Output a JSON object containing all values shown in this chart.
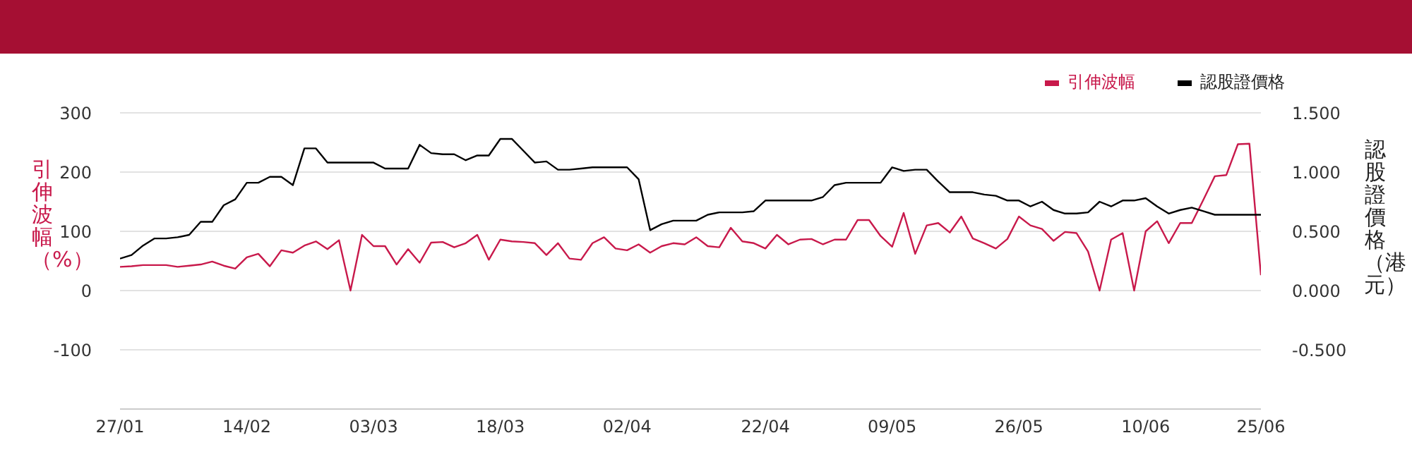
{
  "chart_data": {
    "type": "line",
    "ylabel": "引伸波幅（%）",
    "y2label": "認股證價格（港元）",
    "categories": [
      "27/01",
      null,
      null,
      null,
      null,
      null,
      null,
      null,
      null,
      null,
      null,
      "14/02",
      null,
      null,
      null,
      null,
      null,
      null,
      null,
      null,
      null,
      null,
      "03/03",
      null,
      null,
      null,
      null,
      null,
      null,
      null,
      null,
      null,
      null,
      "18/03",
      null,
      null,
      null,
      null,
      null,
      null,
      null,
      null,
      null,
      null,
      "02/04",
      null,
      null,
      null,
      null,
      null,
      null,
      null,
      null,
      null,
      null,
      null,
      "22/04",
      null,
      null,
      null,
      null,
      null,
      null,
      null,
      null,
      null,
      null,
      "09/05",
      null,
      null,
      null,
      null,
      null,
      null,
      null,
      null,
      null,
      null,
      "26/05",
      null,
      null,
      null,
      null,
      null,
      null,
      null,
      null,
      null,
      null,
      "10/06",
      null,
      null,
      null,
      null,
      null,
      null,
      null,
      null,
      null,
      "25/06"
    ],
    "series": [
      {
        "name": "引伸波幅",
        "color": "#c8194b",
        "values": [
          40,
          41,
          43,
          43,
          43,
          40,
          42,
          44,
          49,
          42,
          37,
          56,
          62,
          41,
          68,
          64,
          76,
          83,
          70,
          85,
          0,
          94,
          75,
          75,
          44,
          70,
          47,
          81,
          82,
          73,
          80,
          94,
          52,
          86,
          83,
          82,
          80,
          60,
          80,
          54,
          52,
          80,
          90,
          71,
          68,
          78,
          64,
          75,
          80,
          78,
          90,
          75,
          73,
          106,
          83,
          80,
          71,
          94,
          78,
          86,
          87,
          78,
          86,
          86,
          119,
          119,
          92,
          74,
          131,
          62,
          110,
          114,
          98,
          125,
          88,
          80,
          71,
          87,
          125,
          110,
          104,
          84,
          99,
          97,
          66,
          0,
          86,
          97,
          0,
          100,
          117,
          80,
          114,
          114,
          153,
          193,
          195,
          247,
          248,
          26
        ]
      },
      {
        "name": "認股證價格",
        "color": "#000000",
        "axis": "y2",
        "values": [
          0.27,
          0.3,
          0.38,
          0.44,
          0.44,
          0.45,
          0.47,
          0.58,
          0.58,
          0.72,
          0.77,
          0.91,
          0.91,
          0.96,
          0.96,
          0.89,
          1.2,
          1.2,
          1.08,
          1.08,
          1.08,
          1.08,
          1.08,
          1.03,
          1.03,
          1.03,
          1.23,
          1.16,
          1.15,
          1.15,
          1.1,
          1.14,
          1.14,
          1.28,
          1.28,
          1.18,
          1.08,
          1.09,
          1.02,
          1.02,
          1.03,
          1.04,
          1.04,
          1.04,
          1.04,
          0.94,
          0.51,
          0.56,
          0.59,
          0.59,
          0.59,
          0.64,
          0.66,
          0.66,
          0.66,
          0.67,
          0.76,
          0.76,
          0.76,
          0.76,
          0.76,
          0.79,
          0.89,
          0.91,
          0.91,
          0.91,
          0.91,
          1.04,
          1.01,
          1.02,
          1.02,
          0.92,
          0.83,
          0.83,
          0.83,
          0.81,
          0.8,
          0.76,
          0.76,
          0.71,
          0.75,
          0.68,
          0.65,
          0.65,
          0.66,
          0.75,
          0.71,
          0.76,
          0.76,
          0.78,
          0.71,
          0.65,
          0.68,
          0.7,
          0.67,
          0.64,
          0.64,
          0.64,
          0.64,
          0.64
        ]
      }
    ],
    "ylim": [
      -200,
      300
    ],
    "yticks": [
      -100,
      0,
      100,
      200,
      300
    ],
    "y2lim": [
      -1,
      1.5
    ],
    "y2ticks": [
      {
        "value": -0.5,
        "label": "-0.500"
      },
      {
        "value": 0,
        "label": "0.000"
      },
      {
        "value": 0.5,
        "label": "0.500"
      },
      {
        "value": 1,
        "label": "1.000"
      },
      {
        "value": 1.5,
        "label": "1.500"
      }
    ],
    "grid": "y",
    "legend": "top right"
  }
}
